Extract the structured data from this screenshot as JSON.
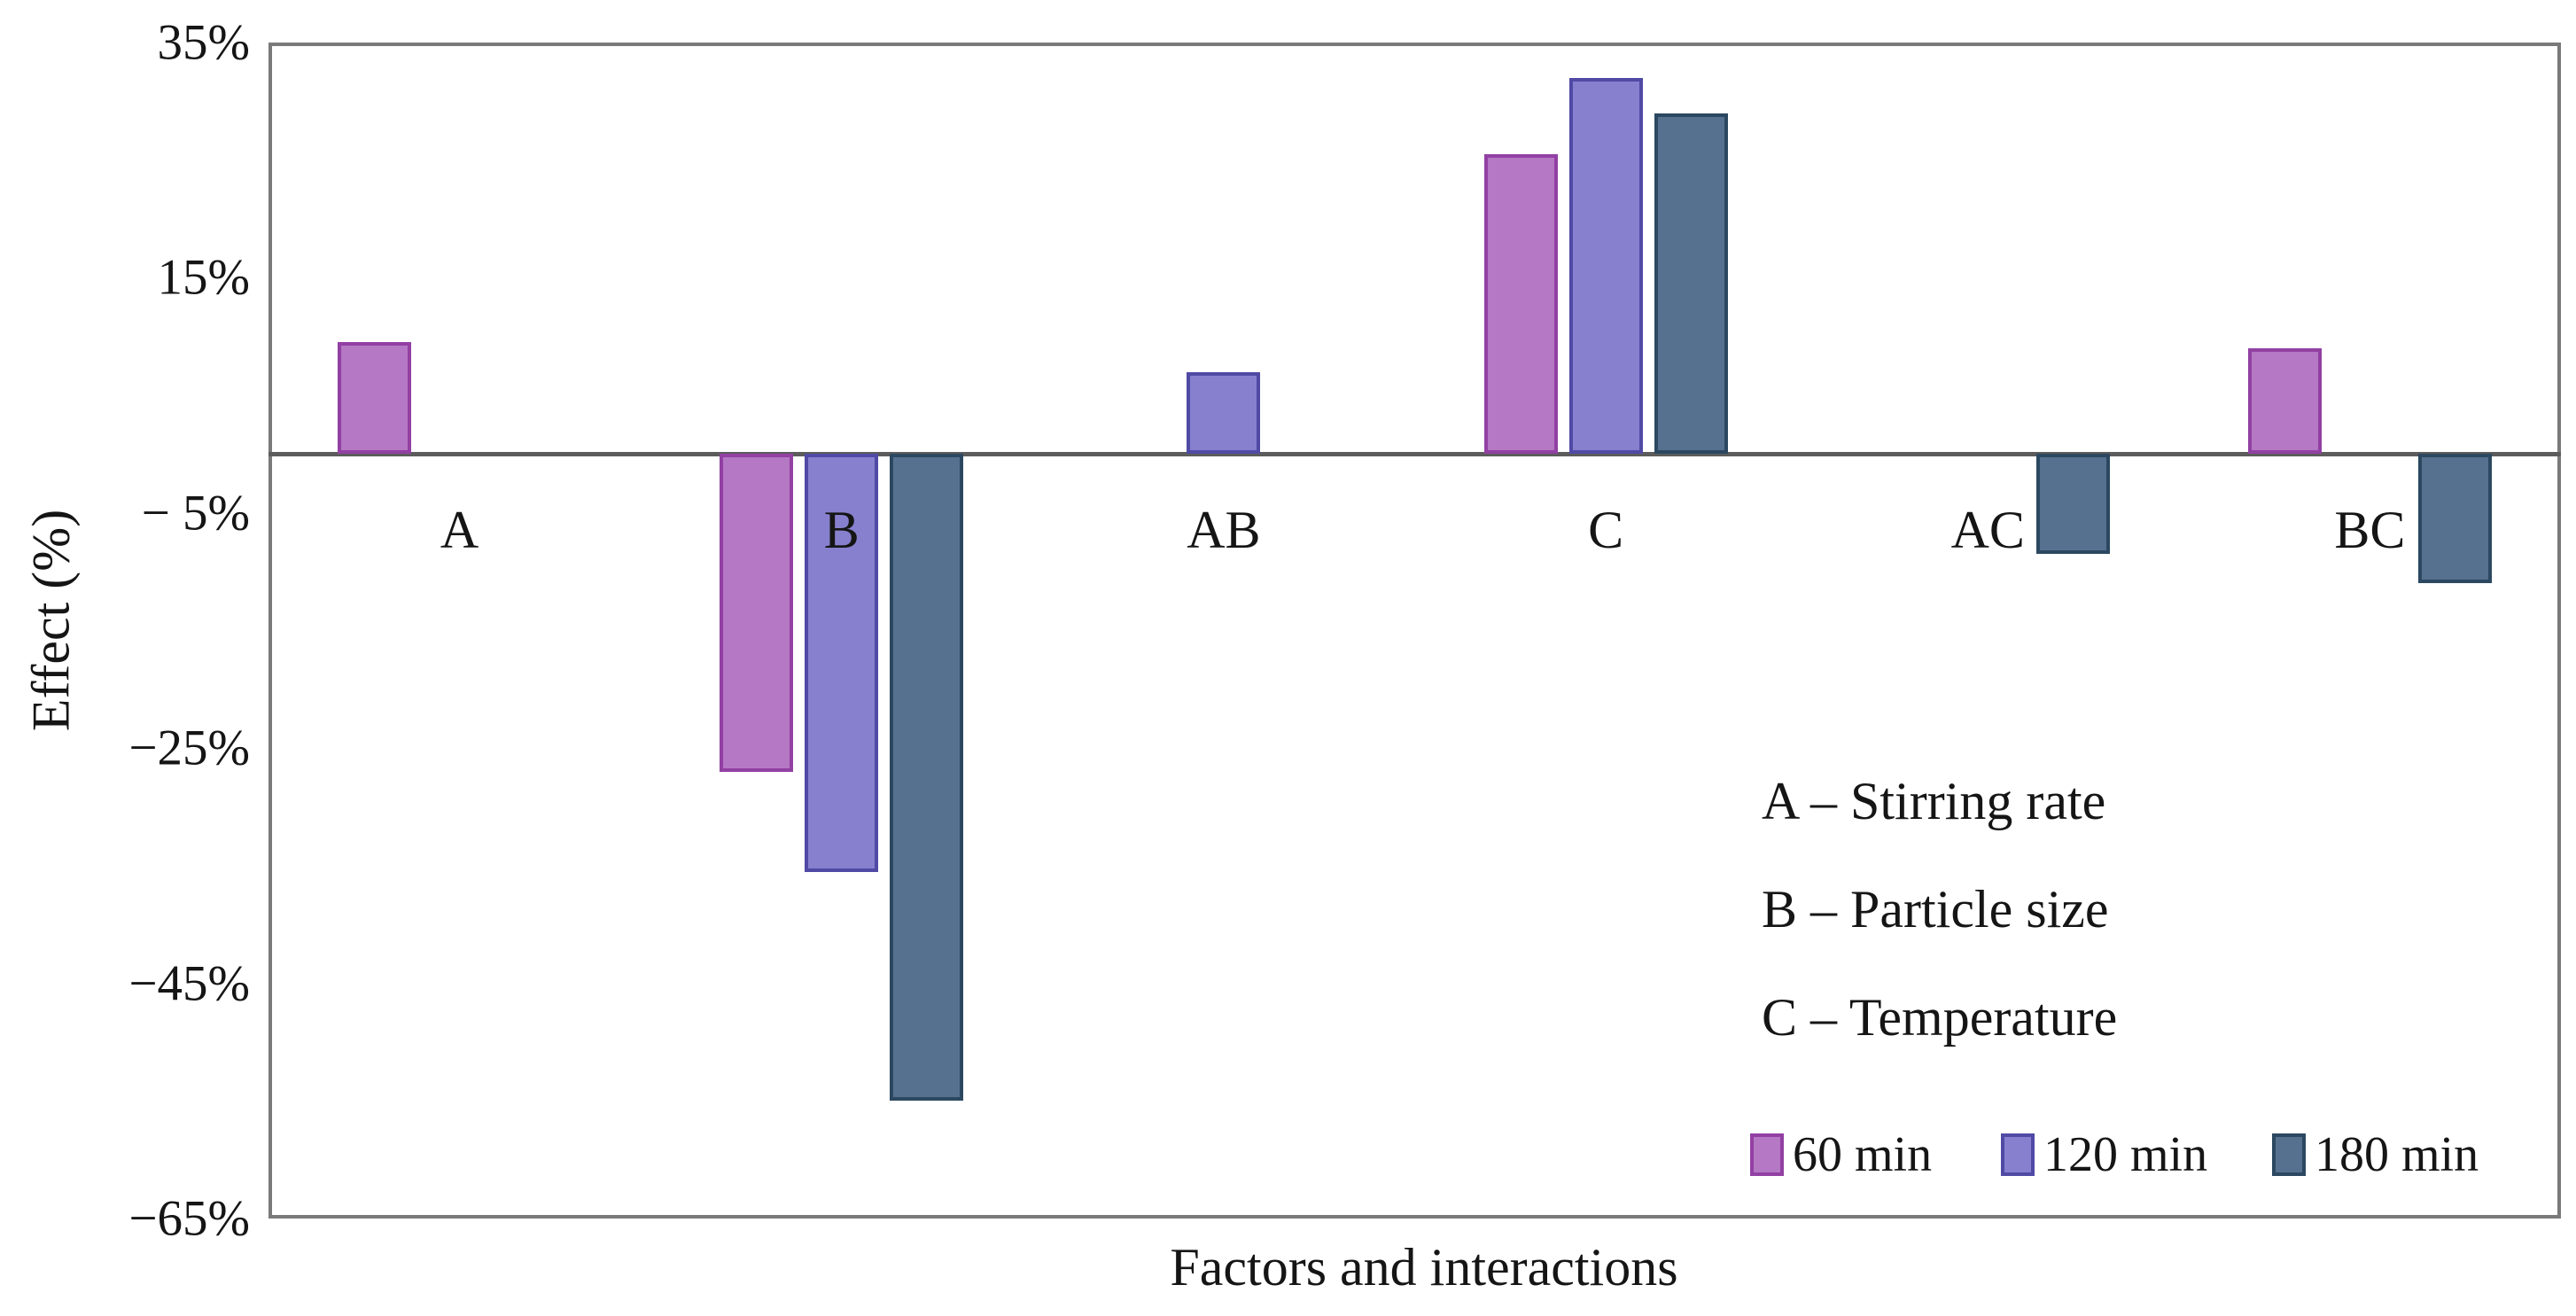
{
  "figure_title": "",
  "axes": {
    "y_title": "Effect (%)",
    "x_title": "Factors and interactions"
  },
  "factor_key_lines": [
    "A – Stirring rate",
    "B – Particle size",
    "C – Temperature"
  ],
  "chart_data": {
    "type": "bar",
    "title": "",
    "xlabel": "Factors and interactions",
    "ylabel": "Effect (%)",
    "categories": [
      "A",
      "B",
      "AB",
      "C",
      "AC",
      "BC"
    ],
    "series": [
      {
        "name": "60 min",
        "fill": "#b578c4",
        "border": "#9240a3",
        "values": [
          9.5,
          -27,
          null,
          25.5,
          null,
          9
        ]
      },
      {
        "name": "120 min",
        "fill": "#8780ce",
        "border": "#504aa5",
        "values": [
          null,
          -35.5,
          7,
          32,
          null,
          null
        ]
      },
      {
        "name": "180 min",
        "fill": "#55718f",
        "border": "#2c4861",
        "values": [
          null,
          -55,
          null,
          29,
          -8.5,
          -11
        ]
      }
    ],
    "ylim": [
      -65,
      35
    ],
    "yticks": [
      {
        "value": 35,
        "label": "35%"
      },
      {
        "value": 15,
        "label": "15%"
      },
      {
        "value": -5,
        "label": "− 5%"
      },
      {
        "value": -25,
        "label": "−25%"
      },
      {
        "value": -45,
        "label": "−45%"
      },
      {
        "value": -65,
        "label": "−65%"
      }
    ],
    "grid": false,
    "legend_position": "inside-bottom-right",
    "axis_colors": {
      "plot_border": "#7a7a7a",
      "zero_line": "#5c5c5c",
      "text": "#151515"
    }
  }
}
